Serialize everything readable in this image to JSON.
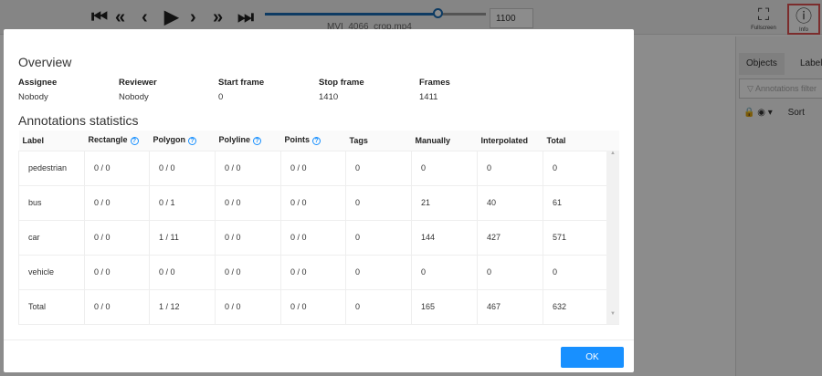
{
  "player": {
    "controls": [
      "first-frame",
      "fast-backward",
      "previous",
      "play",
      "next",
      "fast-forward",
      "last-frame"
    ],
    "progress_frame": 1100,
    "frame_value": "1100",
    "filename": "MVI_4066_crop.mp4",
    "accent": "#1a6cb5"
  },
  "toolbar": {
    "fullscreen": "Fullscreen",
    "info": "Info"
  },
  "sidebar": {
    "tabs": [
      "Objects",
      "Labels"
    ],
    "filter_placeholder": "Annotations filter",
    "sort": "Sort"
  },
  "modal": {
    "overview_title": "Overview",
    "overview": [
      {
        "k": "Assignee",
        "v": "Nobody"
      },
      {
        "k": "Reviewer",
        "v": "Nobody"
      },
      {
        "k": "Start frame",
        "v": "0"
      },
      {
        "k": "Stop frame",
        "v": "1410"
      },
      {
        "k": "Frames",
        "v": "1411"
      }
    ],
    "stats_title": "Annotations statistics",
    "columns": [
      "Label",
      "Rectangle",
      "Polygon",
      "Polyline",
      "Points",
      "Tags",
      "Manually",
      "Interpolated",
      "Total"
    ],
    "rows": [
      [
        "pedestrian",
        "0 / 0",
        "0 / 0",
        "0 / 0",
        "0 / 0",
        "0",
        "0",
        "0",
        "0"
      ],
      [
        "bus",
        "0 / 0",
        "0 / 1",
        "0 / 0",
        "0 / 0",
        "0",
        "21",
        "40",
        "61"
      ],
      [
        "car",
        "0 / 0",
        "1 / 11",
        "0 / 0",
        "0 / 0",
        "0",
        "144",
        "427",
        "571"
      ],
      [
        "vehicle",
        "0 / 0",
        "0 / 0",
        "0 / 0",
        "0 / 0",
        "0",
        "0",
        "0",
        "0"
      ],
      [
        "Total",
        "0 / 0",
        "1 / 12",
        "0 / 0",
        "0 / 0",
        "0",
        "165",
        "467",
        "632"
      ]
    ],
    "ok": "OK"
  }
}
